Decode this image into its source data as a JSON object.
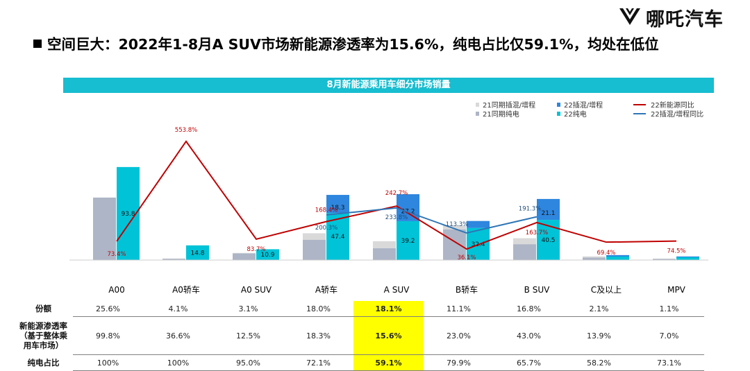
{
  "brand": {
    "name": "哪吒汽车",
    "icon": "neta-logo-icon"
  },
  "headline": "空间巨大：2022年1-8月A SUV市场新能源渗透率为15.6%，纯电占比仅59.1%，均处在低位",
  "chart_data": {
    "type": "bar",
    "title": "8月新能源乘用车细分市场销量",
    "categories": [
      "A00",
      "A0轿车",
      "A0 SUV",
      "A轿车",
      "A SUV",
      "B轿车",
      "B SUV",
      "C及以上",
      "MPV"
    ],
    "legend_position": "top-right",
    "series": [
      {
        "name": "21同期插混/增程",
        "kind": "bar",
        "group": "2021",
        "color": "#d9d9d9",
        "values": [
          0,
          0.3,
          0.4,
          6.5,
          7.0,
          4.0,
          6.0,
          1.2,
          0.3
        ]
      },
      {
        "name": "21同期纯电",
        "kind": "bar",
        "group": "2021",
        "color": "#adb5c6",
        "values": [
          63,
          1.3,
          6.8,
          20.5,
          12.0,
          31.0,
          16.0,
          2.5,
          1.2
        ]
      },
      {
        "name": "22纯电",
        "kind": "bar",
        "group": "2022",
        "color": "#00c3d7",
        "values": [
          93.8,
          14.8,
          10.9,
          47.4,
          39.2,
          32.4,
          40.5,
          3.5,
          2.8
        ],
        "labels": [
          "93.8",
          "14.8",
          "10.9",
          "47.4",
          "39.2",
          "32.4",
          "40.5",
          "",
          ""
        ]
      },
      {
        "name": "22插混/增程",
        "kind": "bar",
        "group": "2022",
        "color": "#2e86de",
        "values": [
          0,
          0,
          0,
          18.3,
          27.2,
          7.0,
          21.1,
          1.5,
          0.8
        ],
        "labels": [
          "",
          "",
          "",
          "18.3",
          "27.2",
          "",
          "21.1",
          "",
          ""
        ]
      },
      {
        "name": "22新能源同比",
        "kind": "line",
        "color": "#c00000",
        "values": [
          73.4,
          553.8,
          83.7,
          168.4,
          242.7,
          36.1,
          163.7,
          69.4,
          74.5
        ],
        "labels": [
          "73.4%",
          "553.8%",
          "83.7%",
          "168.4%",
          "242.7%",
          "36.1%",
          "163.7%",
          "69.4%",
          "74.5%"
        ]
      },
      {
        "name": "22插混/增程同比",
        "kind": "line",
        "color": "#2e75b6",
        "values": [
          null,
          null,
          null,
          200.3,
          233.8,
          113.3,
          191.3,
          null,
          null
        ],
        "labels": [
          "",
          "",
          "",
          "200.3%",
          "233.8%",
          "113.3%",
          "191.3%",
          "",
          ""
        ]
      }
    ]
  },
  "table": {
    "rows": [
      {
        "label": "份额",
        "values": [
          "25.6%",
          "4.1%",
          "3.1%",
          "18.0%",
          "18.1%",
          "11.1%",
          "16.8%",
          "2.1%",
          "1.1%"
        ]
      },
      {
        "label": "新能源渗透率\n（基于整体乘\n用车市场）",
        "values": [
          "99.8%",
          "36.6%",
          "12.5%",
          "18.3%",
          "15.6%",
          "23.0%",
          "43.0%",
          "13.9%",
          "7.0%"
        ]
      },
      {
        "label": "纯电占比",
        "values": [
          "100%",
          "100%",
          "95.0%",
          "72.1%",
          "59.1%",
          "79.9%",
          "65.7%",
          "58.2%",
          "73.1%"
        ]
      }
    ],
    "highlight_column": "A SUV",
    "highlight_color": "#ffff00"
  }
}
